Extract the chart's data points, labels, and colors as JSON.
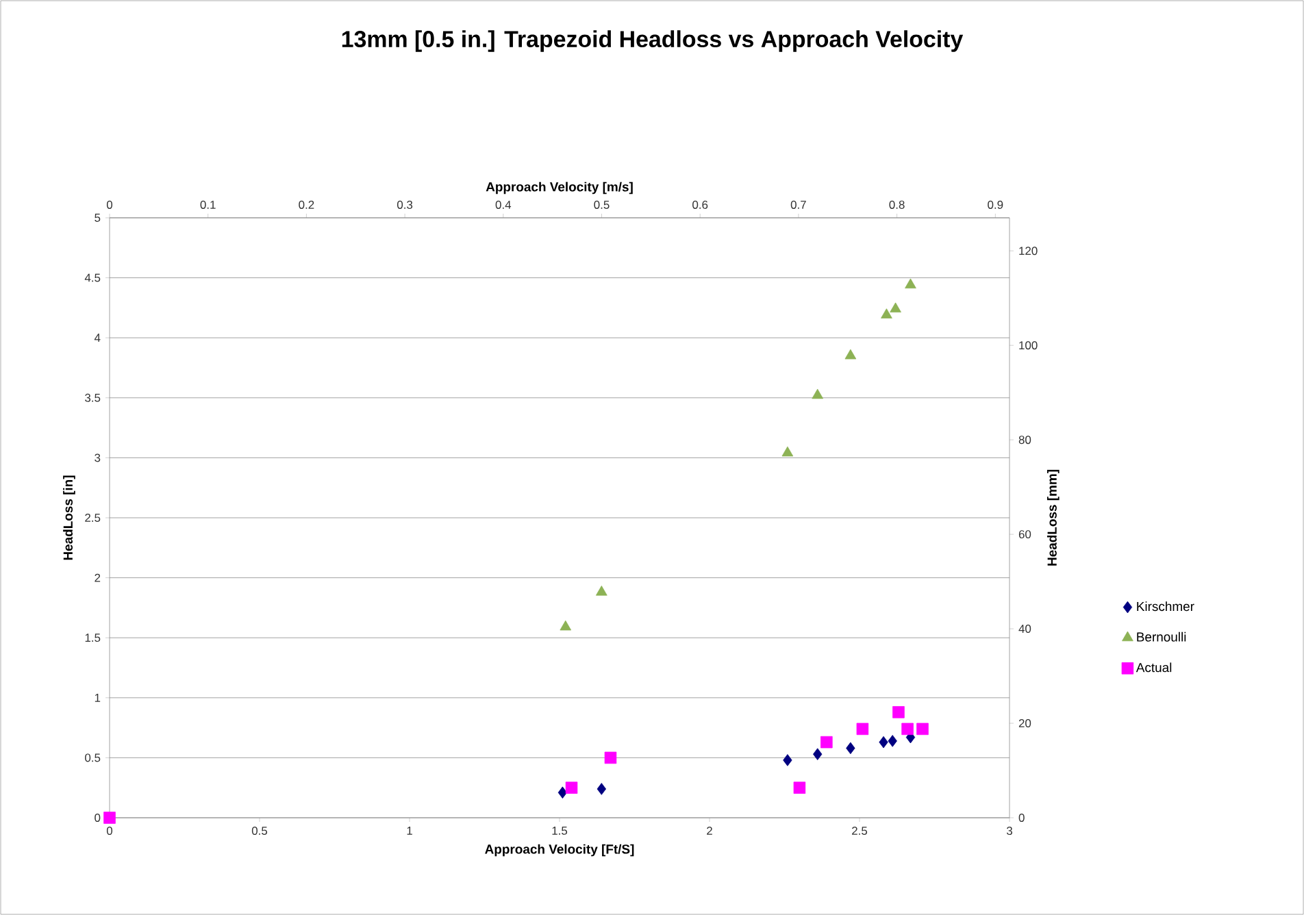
{
  "chart_data": {
    "type": "scatter",
    "title": "13mm [0.5 in.] Trapezoid Headloss vs Approach Velocity",
    "xlabel": "Approach Velocity [Ft/S]",
    "ylabel": "HeadLoss [in]",
    "x2label": "Approach Velocity [m/s]",
    "y2label": "HeadLoss [mm]",
    "xlim": [
      0,
      3
    ],
    "xticks": [
      0,
      0.5,
      1,
      1.5,
      2,
      2.5,
      3
    ],
    "ylim": [
      0,
      5
    ],
    "yticks": [
      0,
      0.5,
      1,
      1.5,
      2,
      2.5,
      3,
      3.5,
      4,
      4.5,
      5
    ],
    "x2lim": [
      0,
      0.9144
    ],
    "x2ticks": [
      0,
      0.1,
      0.2,
      0.3,
      0.4,
      0.5,
      0.6,
      0.7,
      0.8,
      0.9
    ],
    "y2lim": [
      0,
      127
    ],
    "y2ticks": [
      0,
      20,
      40,
      60,
      80,
      100,
      120
    ],
    "grid": "y",
    "legend": "right",
    "series": [
      {
        "name": "Kirschmer",
        "color": "#000080",
        "marker": "diamond",
        "x": [
          1.51,
          1.64,
          2.26,
          2.36,
          2.47,
          2.58,
          2.61,
          2.67
        ],
        "values": [
          0.21,
          0.24,
          0.48,
          0.53,
          0.58,
          0.63,
          0.64,
          0.67
        ]
      },
      {
        "name": "Bernoulli",
        "color": "#8db255",
        "marker": "triangle",
        "x": [
          1.52,
          1.64,
          2.26,
          2.36,
          2.47,
          2.59,
          2.62,
          2.67
        ],
        "values": [
          1.59,
          1.88,
          3.04,
          3.52,
          3.85,
          4.19,
          4.24,
          4.44
        ]
      },
      {
        "name": "Actual",
        "color": "#ff00ff",
        "marker": "square",
        "x": [
          0,
          1.54,
          1.67,
          2.3,
          2.39,
          2.51,
          2.63,
          2.66,
          2.71
        ],
        "values": [
          0,
          0.25,
          0.5,
          0.25,
          0.63,
          0.74,
          0.88,
          0.74,
          0.74
        ]
      }
    ]
  }
}
